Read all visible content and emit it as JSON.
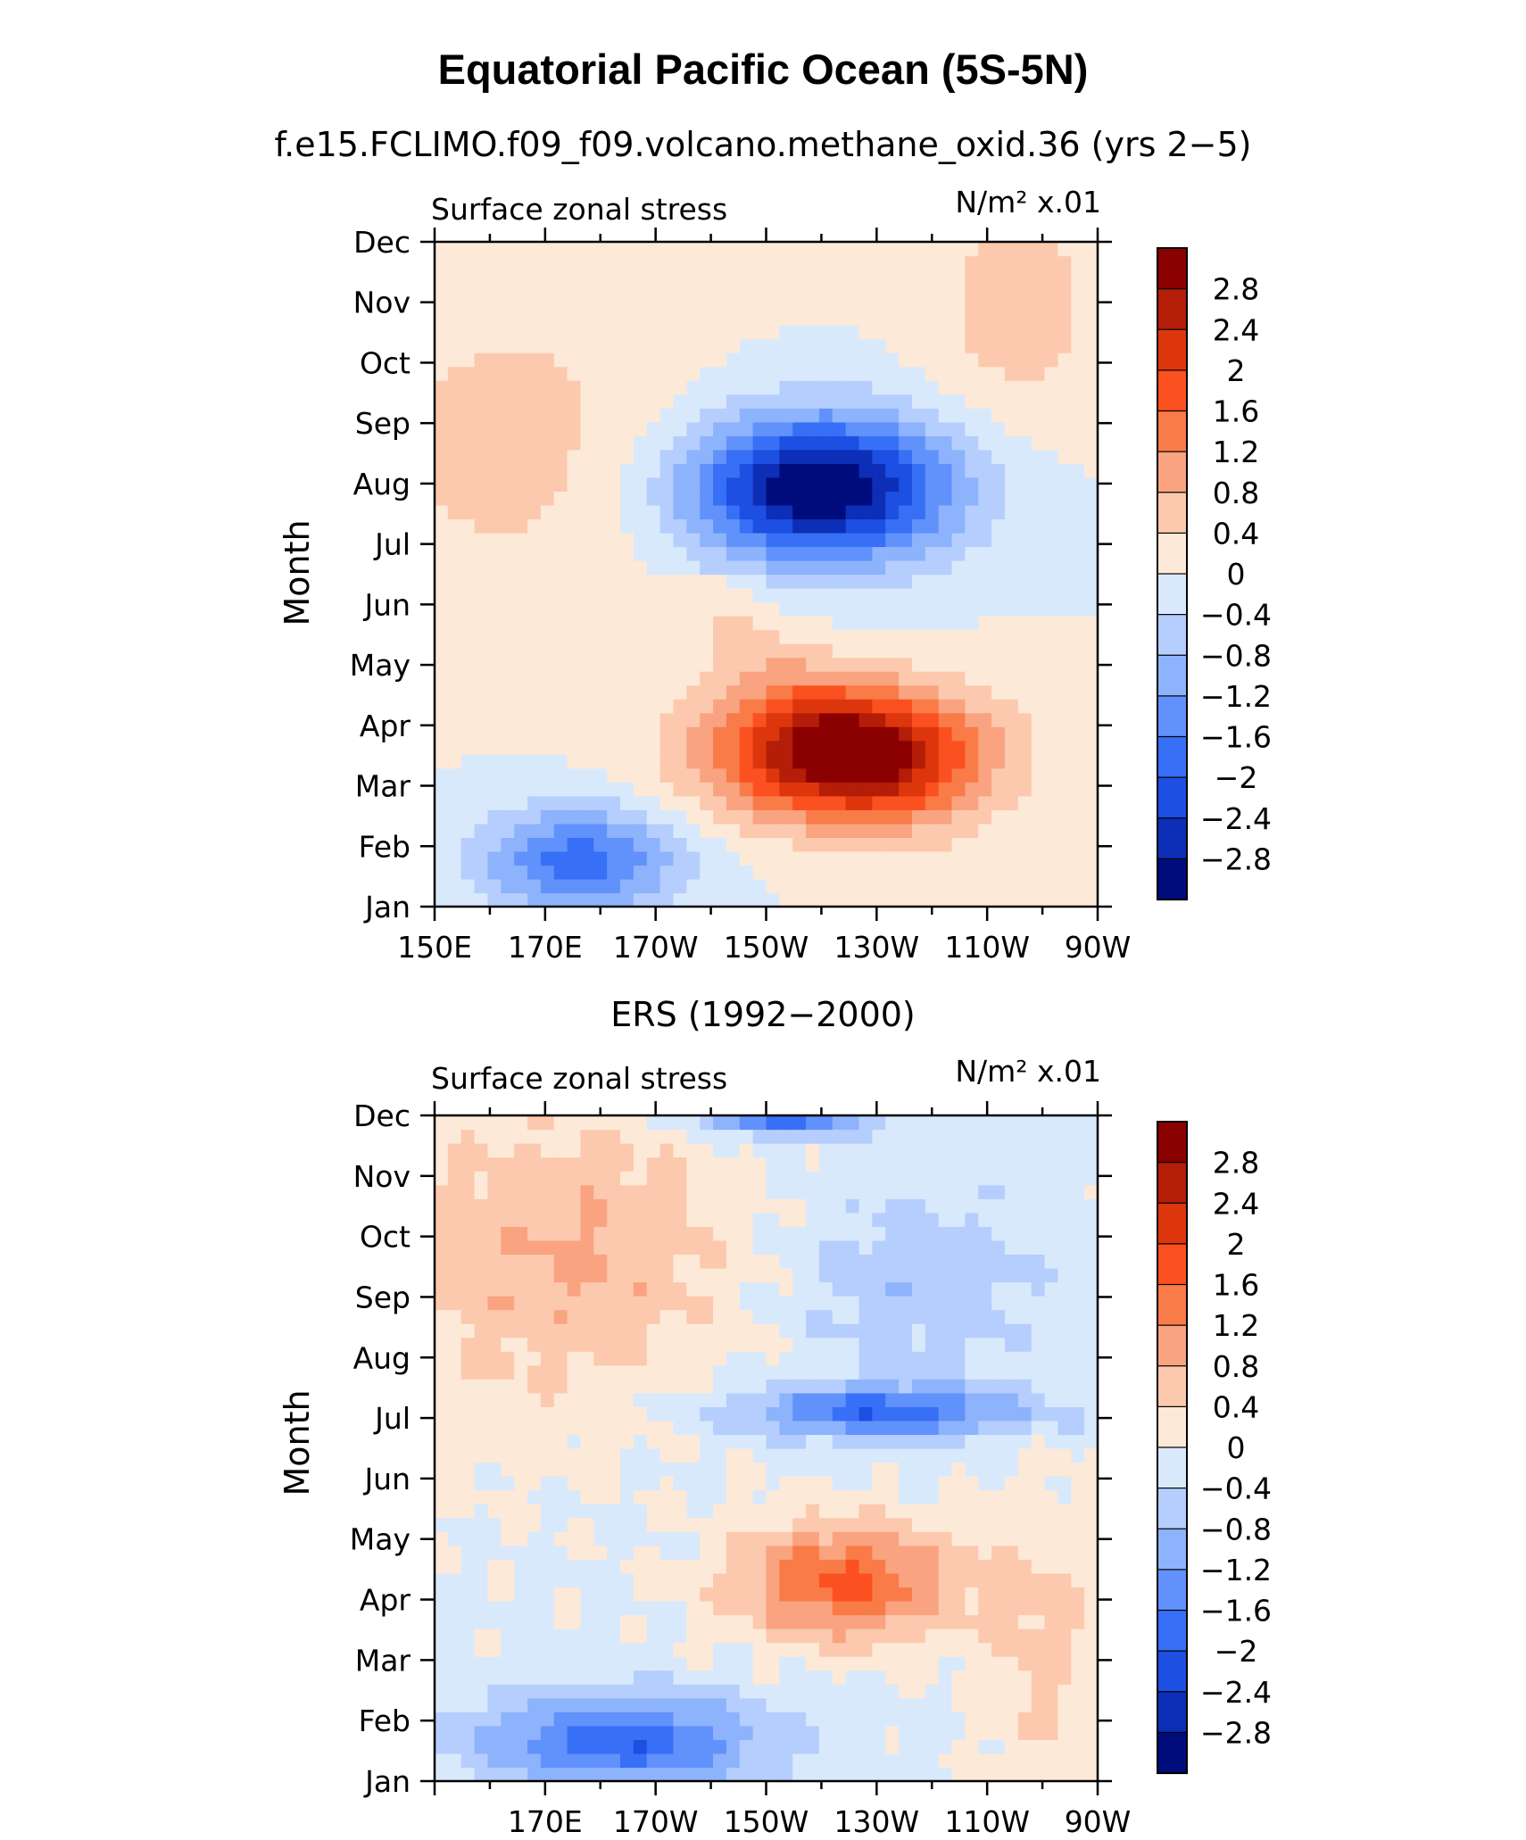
{
  "figure": {
    "title": "Equatorial Pacific Ocean (5S-5N)"
  },
  "chart_data": [
    {
      "type": "heatmap",
      "subtitle": "f.e15.FCLIMO.f09_f09.volcano.methane_oxid.36 (yrs 2−5)",
      "left_label": "Surface zonal stress",
      "units_label": "N/m² x.01",
      "ylabel": "Month",
      "xlabel": "",
      "x_ticks": [
        "150E",
        "170E",
        "170W",
        "150W",
        "130W",
        "110W",
        "90W"
      ],
      "y_ticks": [
        "Jan",
        "Feb",
        "Mar",
        "Apr",
        "May",
        "Jun",
        "Jul",
        "Aug",
        "Sep",
        "Oct",
        "Nov",
        "Dec"
      ],
      "xlim": [
        "150E",
        "90W"
      ],
      "ylim": [
        "Jan",
        "Dec"
      ],
      "legend": "right",
      "features": [
        {
          "sign": "positive",
          "lon": 135,
          "month": 3.5,
          "peak": 3.0
        },
        {
          "sign": "negative",
          "lon": 138,
          "month": 7.5,
          "peak": -3.0
        },
        {
          "sign": "negative",
          "lon": 168,
          "month": 1.5,
          "peak": -1.8
        }
      ]
    },
    {
      "type": "heatmap",
      "subtitle": "ERS (1992−2000)",
      "left_label": "Surface zonal stress",
      "units_label": "N/m² x.01",
      "ylabel": "Month",
      "xlabel": "",
      "x_ticks": [
        "170E",
        "170W",
        "150W",
        "130W",
        "110W",
        "90W"
      ],
      "y_ticks": [
        "Jan",
        "Feb",
        "Mar",
        "Apr",
        "May",
        "Jun",
        "Jul",
        "Aug",
        "Sep",
        "Oct",
        "Nov",
        "Dec"
      ],
      "ylim": [
        "Jan",
        "Dec"
      ],
      "legend": "right",
      "features": [
        {
          "sign": "positive",
          "lon": 132,
          "month": 4.0,
          "peak": 1.7
        },
        {
          "sign": "negative",
          "lon": 128,
          "month": 6.5,
          "peak": -1.7
        },
        {
          "sign": "negative",
          "lon": 168,
          "month": 1.5,
          "peak": -1.9
        },
        {
          "sign": "negative",
          "lon": 145,
          "month": 12.0,
          "peak": -2.0
        }
      ]
    }
  ],
  "colorbar": {
    "labels": [
      "2.8",
      "2.4",
      "2",
      "1.6",
      "1.2",
      "0.8",
      "0.4",
      "0",
      "−0.4",
      "−0.8",
      "−1.2",
      "−1.6",
      "−2",
      "−2.4",
      "−2.8"
    ],
    "colors": [
      "#8b0000",
      "#b41d07",
      "#dd360d",
      "#fb5020",
      "#f97b48",
      "#f9a380",
      "#fcc9ae",
      "#fde9d7",
      "#d9e9fc",
      "#b5cefd",
      "#8eb3fd",
      "#6192fb",
      "#3770f6",
      "#1c4fe2",
      "#0d2eb6",
      "#000c7c"
    ]
  }
}
